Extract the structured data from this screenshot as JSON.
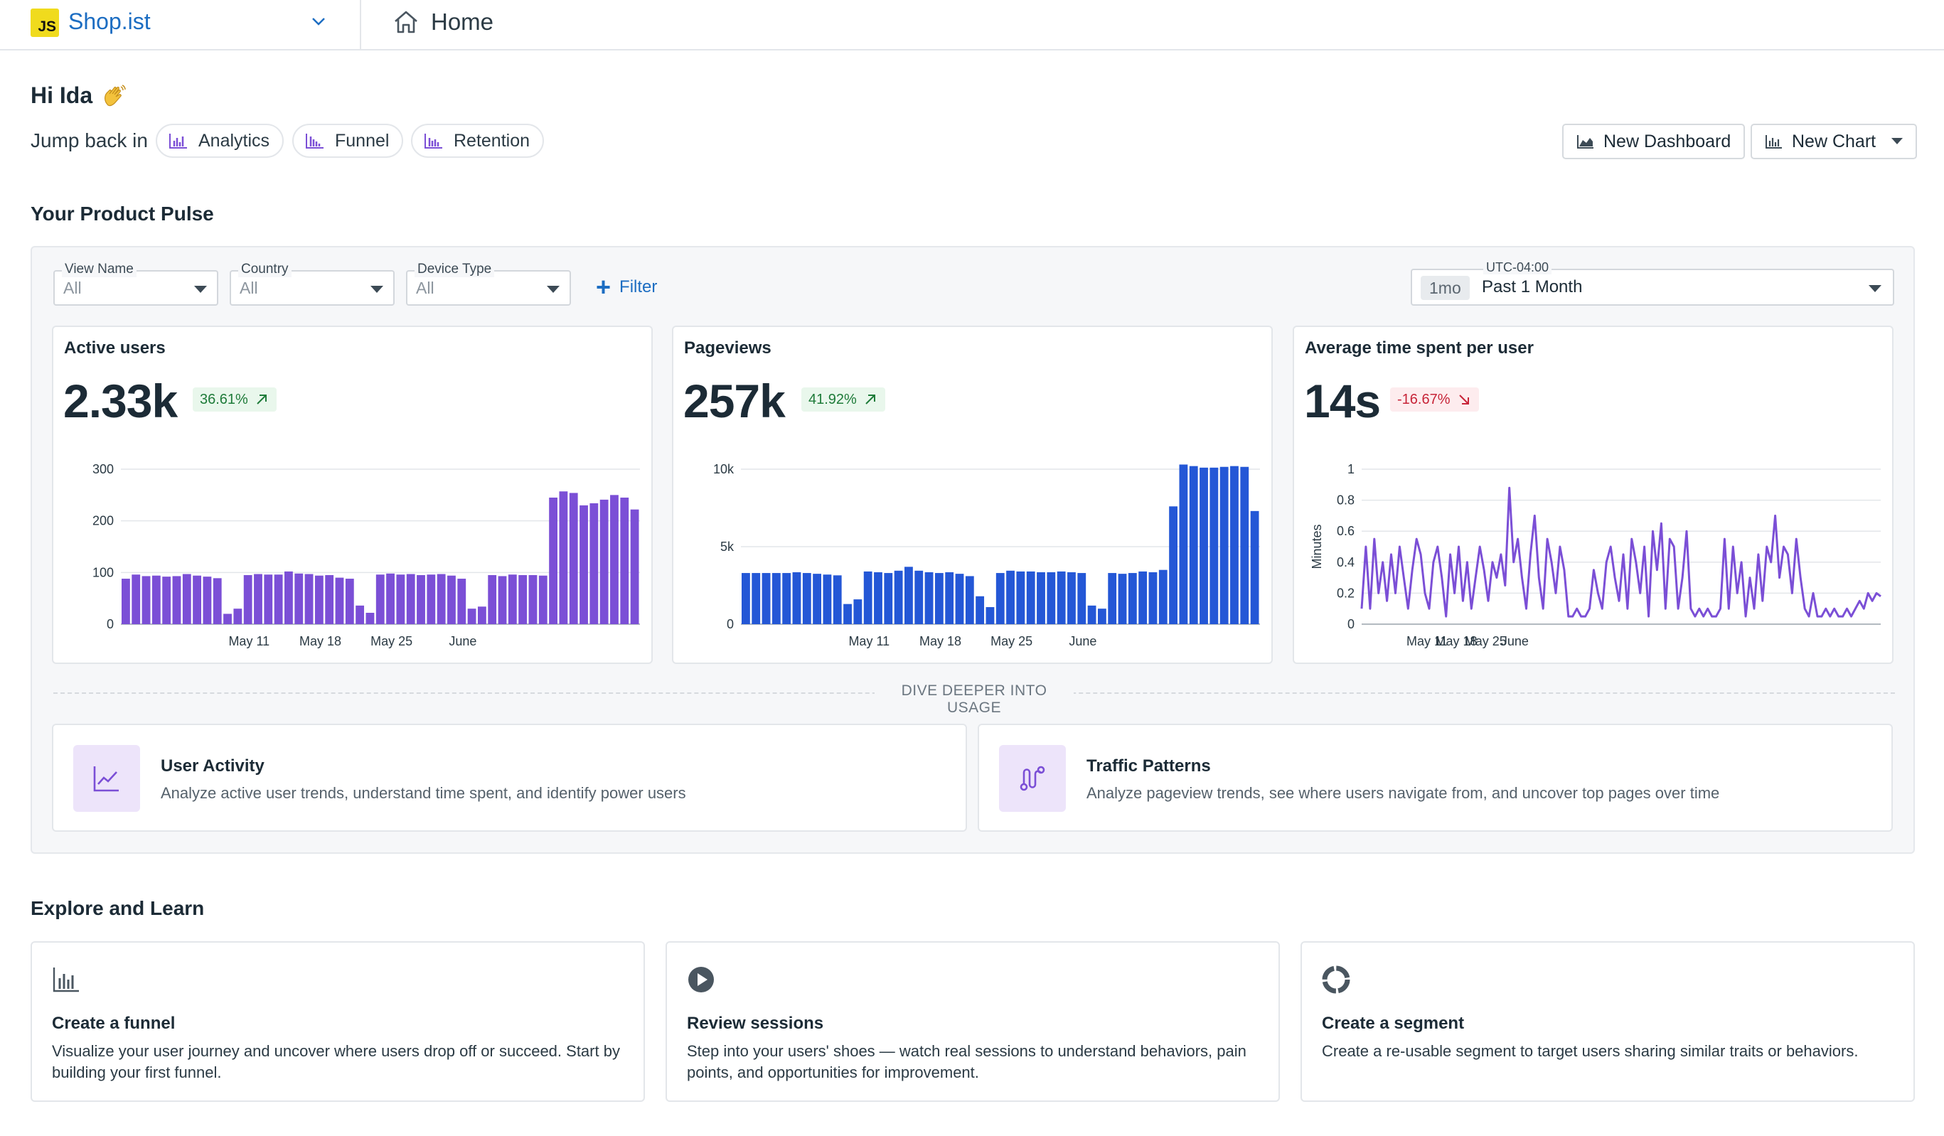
{
  "app": {
    "logo_text": "JS",
    "name": "Shop.ist",
    "page": "Home"
  },
  "greeting": {
    "text": "Hi Ida",
    "jump_label": "Jump back in"
  },
  "jump_chips": [
    {
      "label": "Analytics"
    },
    {
      "label": "Funnel"
    },
    {
      "label": "Retention"
    }
  ],
  "actions": {
    "new_dashboard": "New Dashboard",
    "new_chart": "New Chart"
  },
  "pulse": {
    "title": "Your Product Pulse",
    "filters": [
      {
        "legend": "View Name",
        "value": "All"
      },
      {
        "legend": "Country",
        "value": "All"
      },
      {
        "legend": "Device Type",
        "value": "All"
      }
    ],
    "filter_button": "Filter",
    "time": {
      "timezone": "UTC-04:00",
      "badge": "1mo",
      "label": "Past 1 Month"
    },
    "divider_label": "DIVE DEEPER INTO USAGE",
    "cards": [
      {
        "title": "Active users",
        "value": "2.33k",
        "delta": "36.61%",
        "trend": "up"
      },
      {
        "title": "Pageviews",
        "value": "257k",
        "delta": "41.92%",
        "trend": "up"
      },
      {
        "title": "Average time spent per user",
        "value": "14s",
        "delta": "-16.67%",
        "trend": "down"
      }
    ],
    "dive": [
      {
        "title": "User Activity",
        "desc": "Analyze active user trends, understand time spent, and identify power users",
        "icon": "trend-chart-icon"
      },
      {
        "title": "Traffic Patterns",
        "desc": "Analyze pageview trends, see where users navigate from, and uncover top pages over time",
        "icon": "route-icon"
      }
    ]
  },
  "learn": {
    "title": "Explore and Learn",
    "cards": [
      {
        "title": "Create a funnel",
        "desc": "Visualize your user journey and uncover where users drop off or succeed. Start by building your first funnel.",
        "icon": "bar-chart-icon"
      },
      {
        "title": "Review sessions",
        "desc": "Step into your users' shoes — watch real sessions to understand behaviors, pain points, and opportunities for improvement.",
        "icon": "play-icon"
      },
      {
        "title": "Create a segment",
        "desc": "Create a re-usable segment to target users sharing similar traits or behaviors.",
        "icon": "segment-icon"
      }
    ]
  },
  "colors": {
    "brand_blue": "#1c6dc2",
    "purple": "#7b4fd6",
    "blue_bar": "#2457d6",
    "up": "#1e7b39",
    "down": "#c72438"
  },
  "chart_data": [
    {
      "type": "bar",
      "title": "Active users",
      "x_ticks": [
        "May 11",
        "May 18",
        "May 25",
        "June"
      ],
      "y_ticks": [
        0,
        100,
        200,
        300
      ],
      "ylim": [
        0,
        300
      ],
      "values": [
        88,
        96,
        93,
        94,
        92,
        93,
        97,
        94,
        92,
        89,
        20,
        30,
        95,
        97,
        96,
        96,
        102,
        98,
        97,
        94,
        95,
        90,
        88,
        36,
        22,
        96,
        98,
        96,
        97,
        95,
        96,
        97,
        94,
        88,
        30,
        34,
        95,
        93,
        96,
        95,
        95,
        94,
        245,
        257,
        254,
        230,
        234,
        241,
        250,
        245,
        222
      ]
    },
    {
      "type": "bar",
      "title": "Pageviews",
      "x_ticks": [
        "May 11",
        "May 18",
        "May 25",
        "June"
      ],
      "y_ticks": [
        "0",
        "5k",
        "10k"
      ],
      "ylim": [
        0,
        10000
      ],
      "values": [
        3300,
        3300,
        3300,
        3300,
        3300,
        3350,
        3300,
        3250,
        3200,
        3150,
        1300,
        1600,
        3400,
        3350,
        3300,
        3450,
        3700,
        3450,
        3350,
        3300,
        3350,
        3250,
        3100,
        1800,
        1100,
        3300,
        3450,
        3400,
        3400,
        3350,
        3350,
        3400,
        3350,
        3300,
        1200,
        1000,
        3300,
        3250,
        3300,
        3400,
        3350,
        3500,
        7600,
        10300,
        10200,
        10100,
        10100,
        10150,
        10200,
        10150,
        7300
      ]
    },
    {
      "type": "line",
      "title": "Average time spent per user",
      "ylabel": "Minutes",
      "x_ticks": [
        "May 11",
        "May 18",
        "May 25",
        "June"
      ],
      "y_ticks": [
        "0",
        "0.2",
        "0.4",
        "0.6",
        "0.8",
        "1"
      ],
      "ylim": [
        0,
        1
      ],
      "values": [
        0.1,
        0.5,
        0.1,
        0.55,
        0.2,
        0.4,
        0.15,
        0.45,
        0.2,
        0.5,
        0.3,
        0.1,
        0.35,
        0.55,
        0.45,
        0.2,
        0.1,
        0.4,
        0.5,
        0.3,
        0.05,
        0.45,
        0.2,
        0.5,
        0.15,
        0.4,
        0.1,
        0.3,
        0.5,
        0.35,
        0.15,
        0.4,
        0.3,
        0.45,
        0.25,
        0.88,
        0.4,
        0.55,
        0.3,
        0.1,
        0.45,
        0.7,
        0.3,
        0.1,
        0.55,
        0.4,
        0.2,
        0.5,
        0.35,
        0.05,
        0.05,
        0.1,
        0.05,
        0.05,
        0.1,
        0.35,
        0.2,
        0.1,
        0.4,
        0.5,
        0.3,
        0.15,
        0.45,
        0.1,
        0.55,
        0.4,
        0.2,
        0.5,
        0.05,
        0.6,
        0.35,
        0.65,
        0.1,
        0.55,
        0.5,
        0.1,
        0.3,
        0.6,
        0.1,
        0.05,
        0.1,
        0.05,
        0.1,
        0.05,
        0.05,
        0.1,
        0.55,
        0.1,
        0.5,
        0.2,
        0.4,
        0.05,
        0.3,
        0.1,
        0.45,
        0.15,
        0.5,
        0.4,
        0.7,
        0.3,
        0.5,
        0.45,
        0.2,
        0.55,
        0.3,
        0.1,
        0.05,
        0.2,
        0.05,
        0.05,
        0.1,
        0.05,
        0.1,
        0.05,
        0.05,
        0.1,
        0.05,
        0.1,
        0.15,
        0.1,
        0.2,
        0.15,
        0.2,
        0.18
      ]
    }
  ]
}
